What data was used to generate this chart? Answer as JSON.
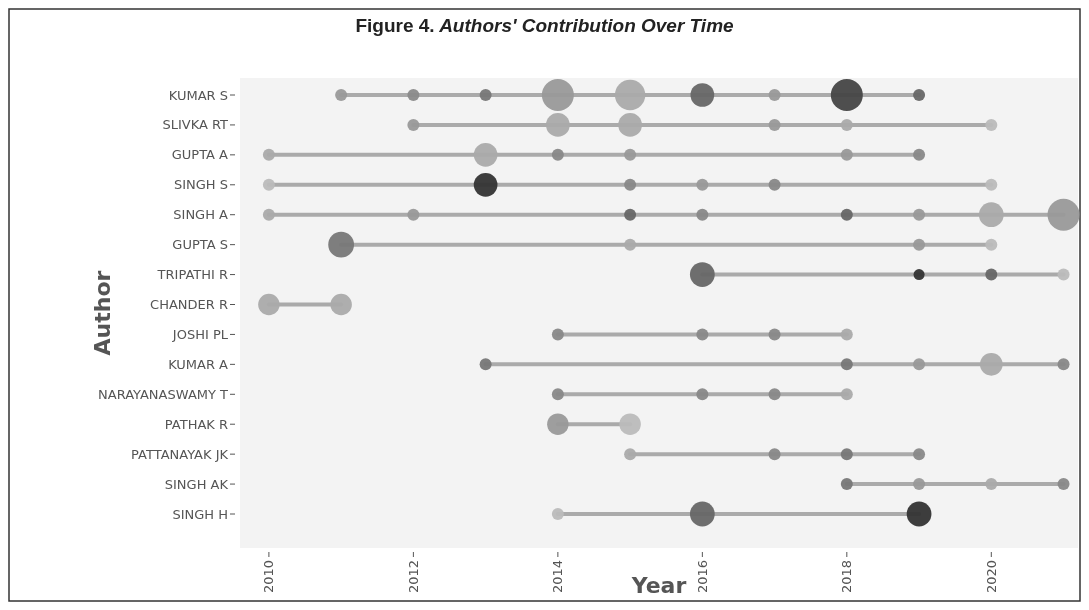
{
  "chart_data": {
    "type": "bubble",
    "orientation": "horizontal",
    "title": "Figure 4. Authors' Contribution Over Time",
    "xlabel": "Year",
    "ylabel": "Author",
    "categories": [
      "KUMAR S",
      "SLIVKA RT",
      "GUPTA A",
      "SINGH S",
      "SINGH A",
      "GUPTA S",
      "TRIPATHI R",
      "CHANDER R",
      "JOSHI PL",
      "KUMAR A",
      "NARAYANASWAMY T",
      "PATHAK R",
      "PATTANAYAK JK",
      "SINGH AK",
      "SINGH H"
    ],
    "line_style": "solid",
    "marker": "circle",
    "xlim": [
      2009.6,
      2021.2
    ],
    "xticks": [
      2010,
      2012,
      2014,
      2016,
      2018,
      2020
    ],
    "series": [
      {
        "x": [
          "KUMAR S",
          "KUMAR S",
          "KUMAR S",
          "KUMAR S",
          "KUMAR S",
          "KUMAR S",
          "KUMAR S",
          "KUMAR S",
          "KUMAR S"
        ],
        "values": [
          2011,
          2012,
          2013,
          2014,
          2015,
          2016,
          2017,
          2018,
          2019
        ],
        "sizes": [
          0.14,
          0.14,
          0.14,
          1,
          0.9,
          0.55,
          0.14,
          1,
          0.14
        ],
        "colors": [
          "#999999",
          "#8a8a8a",
          "#777777",
          "#999999",
          "#aaaaaa",
          "#666666",
          "#999999",
          "#444444",
          "#666666"
        ]
      },
      {
        "x": [
          "SLIVKA RT",
          "SLIVKA RT",
          "SLIVKA RT",
          "SLIVKA RT",
          "SLIVKA RT",
          "SLIVKA RT"
        ],
        "values": [
          2012,
          2014,
          2015,
          2017,
          2018,
          2020
        ],
        "sizes": [
          0.14,
          0.55,
          0.55,
          0.14,
          0.14,
          0.14
        ],
        "colors": [
          "#999999",
          "#aaaaaa",
          "#aaaaaa",
          "#999999",
          "#aaaaaa",
          "#bbbbbb"
        ]
      },
      {
        "x": [
          "GUPTA A",
          "GUPTA A",
          "GUPTA A",
          "GUPTA A",
          "GUPTA A",
          "GUPTA A"
        ],
        "values": [
          2010,
          2013,
          2014,
          2015,
          2018,
          2019
        ],
        "sizes": [
          0.14,
          0.55,
          0.14,
          0.14,
          0.14,
          0.14
        ],
        "colors": [
          "#aaaaaa",
          "#aaaaaa",
          "#888888",
          "#999999",
          "#999999",
          "#888888"
        ]
      },
      {
        "x": [
          "SINGH S",
          "SINGH S",
          "SINGH S",
          "SINGH S",
          "SINGH S",
          "SINGH S"
        ],
        "values": [
          2010,
          2013,
          2015,
          2016,
          2017,
          2020
        ],
        "sizes": [
          0.14,
          0.55,
          0.14,
          0.14,
          0.14,
          0.14
        ],
        "colors": [
          "#bbbbbb",
          "#333333",
          "#888888",
          "#999999",
          "#888888",
          "#bbbbbb"
        ]
      },
      {
        "x": [
          "SINGH A",
          "SINGH A",
          "SINGH A",
          "SINGH A",
          "SINGH A",
          "SINGH A",
          "SINGH A",
          "SINGH A"
        ],
        "values": [
          2010,
          2012,
          2015,
          2016,
          2018,
          2019,
          2020,
          2021
        ],
        "sizes": [
          0.14,
          0.14,
          0.14,
          0.14,
          0.14,
          0.14,
          0.6,
          1
        ],
        "colors": [
          "#aaaaaa",
          "#999999",
          "#666666",
          "#888888",
          "#666666",
          "#999999",
          "#aaaaaa",
          "#999999"
        ]
      },
      {
        "x": [
          "GUPTA S",
          "GUPTA S",
          "GUPTA S",
          "GUPTA S"
        ],
        "values": [
          2011,
          2015,
          2019,
          2020
        ],
        "sizes": [
          0.65,
          0.14,
          0.14,
          0.14
        ],
        "colors": [
          "#777777",
          "#aaaaaa",
          "#999999",
          "#bbbbbb"
        ]
      },
      {
        "x": [
          "TRIPATHI R",
          "TRIPATHI R",
          "TRIPATHI R",
          "TRIPATHI R"
        ],
        "values": [
          2016,
          2019,
          2020,
          2021
        ],
        "sizes": [
          0.6,
          0.12,
          0.14,
          0.14
        ],
        "colors": [
          "#666666",
          "#333333",
          "#666666",
          "#bbbbbb"
        ]
      },
      {
        "x": [
          "CHANDER R",
          "CHANDER R"
        ],
        "values": [
          2010,
          2011
        ],
        "sizes": [
          0.45,
          0.45
        ],
        "colors": [
          "#aaaaaa",
          "#aaaaaa"
        ]
      },
      {
        "x": [
          "JOSHI PL",
          "JOSHI PL",
          "JOSHI PL",
          "JOSHI PL"
        ],
        "values": [
          2014,
          2016,
          2017,
          2018
        ],
        "sizes": [
          0.14,
          0.14,
          0.14,
          0.14
        ],
        "colors": [
          "#888888",
          "#888888",
          "#888888",
          "#aaaaaa"
        ]
      },
      {
        "x": [
          "KUMAR A",
          "KUMAR A",
          "KUMAR A",
          "KUMAR A",
          "KUMAR A"
        ],
        "values": [
          2013,
          2018,
          2019,
          2020,
          2021
        ],
        "sizes": [
          0.14,
          0.14,
          0.14,
          0.5,
          0.14
        ],
        "colors": [
          "#777777",
          "#777777",
          "#999999",
          "#aaaaaa",
          "#888888"
        ]
      },
      {
        "x": [
          "NARAYANASWAMY T",
          "NARAYANASWAMY T",
          "NARAYANASWAMY T",
          "NARAYANASWAMY T"
        ],
        "values": [
          2014,
          2016,
          2017,
          2018
        ],
        "sizes": [
          0.14,
          0.14,
          0.14,
          0.14
        ],
        "colors": [
          "#888888",
          "#888888",
          "#888888",
          "#aaaaaa"
        ]
      },
      {
        "x": [
          "PATHAK R",
          "PATHAK R"
        ],
        "values": [
          2014,
          2015
        ],
        "sizes": [
          0.45,
          0.45
        ],
        "colors": [
          "#999999",
          "#bbbbbb"
        ]
      },
      {
        "x": [
          "PATTANAYAK JK",
          "PATTANAYAK JK",
          "PATTANAYAK JK",
          "PATTANAYAK JK"
        ],
        "values": [
          2015,
          2017,
          2018,
          2019
        ],
        "sizes": [
          0.14,
          0.14,
          0.14,
          0.14
        ],
        "colors": [
          "#aaaaaa",
          "#888888",
          "#777777",
          "#888888"
        ]
      },
      {
        "x": [
          "SINGH AK",
          "SINGH AK",
          "SINGH AK",
          "SINGH AK"
        ],
        "values": [
          2018,
          2019,
          2020,
          2021
        ],
        "sizes": [
          0.14,
          0.14,
          0.14,
          0.14
        ],
        "colors": [
          "#777777",
          "#999999",
          "#aaaaaa",
          "#888888"
        ]
      },
      {
        "x": [
          "SINGH H",
          "SINGH H",
          "SINGH H"
        ],
        "values": [
          2014,
          2016,
          2019
        ],
        "sizes": [
          0.14,
          0.6,
          0.6
        ],
        "colors": [
          "#bbbbbb",
          "#666666",
          "#333333"
        ]
      }
    ]
  }
}
